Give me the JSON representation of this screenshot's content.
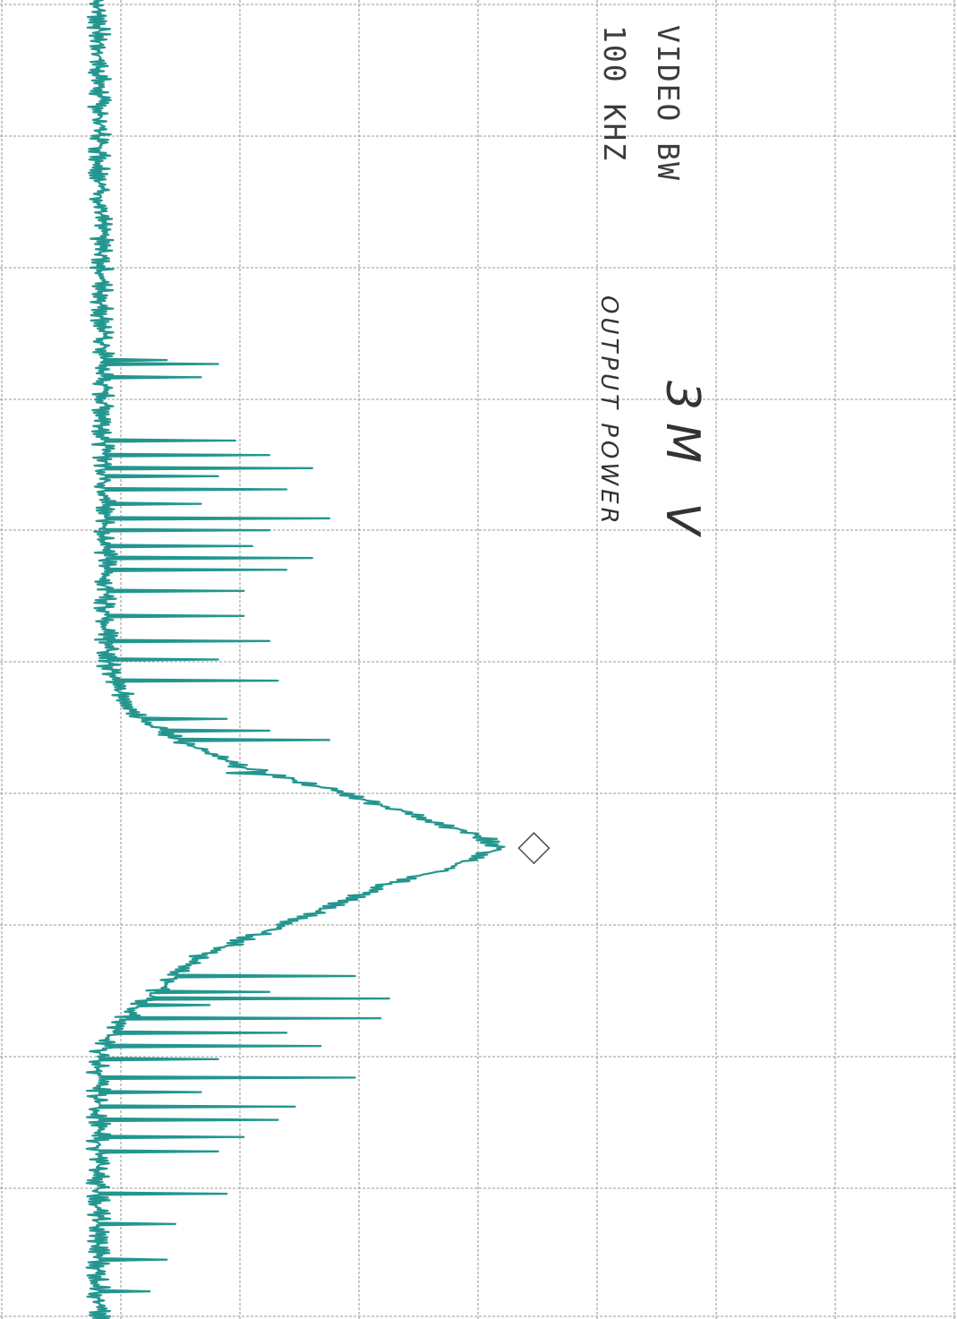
{
  "chart_data": {
    "type": "line",
    "annotations": {
      "video_bw_label": "VIDEO BW",
      "video_bw_value": "100 KHZ",
      "handwritten_title": "3M V",
      "handwritten_subtitle": "OUTPUT POWER"
    },
    "grid": {
      "on": true,
      "x_divisions": 10,
      "y_divisions": 8
    },
    "x_range": [
      0,
      1000
    ],
    "y_range": [
      0,
      100
    ],
    "trace_color": "#23968f",
    "marker": {
      "shape": "diamond",
      "x": 643,
      "y": 48
    },
    "noise_floor": 8,
    "spikes": [
      {
        "x": 273,
        "y": 8
      },
      {
        "x": 276,
        "y": 14
      },
      {
        "x": 286,
        "y": 12
      },
      {
        "x": 334,
        "y": 16
      },
      {
        "x": 345,
        "y": 20
      },
      {
        "x": 355,
        "y": 25
      },
      {
        "x": 361,
        "y": 14
      },
      {
        "x": 371,
        "y": 22
      },
      {
        "x": 382,
        "y": 12
      },
      {
        "x": 393,
        "y": 27
      },
      {
        "x": 402,
        "y": 20
      },
      {
        "x": 414,
        "y": 18
      },
      {
        "x": 423,
        "y": 25
      },
      {
        "x": 432,
        "y": 22
      },
      {
        "x": 448,
        "y": 17
      },
      {
        "x": 467,
        "y": 17
      },
      {
        "x": 486,
        "y": 20
      },
      {
        "x": 500,
        "y": 14
      },
      {
        "x": 516,
        "y": 21
      },
      {
        "x": 545,
        "y": 15
      },
      {
        "x": 554,
        "y": 20
      },
      {
        "x": 561,
        "y": 27
      },
      {
        "x": 586,
        "y": 15
      },
      {
        "x": 740,
        "y": 30
      },
      {
        "x": 752,
        "y": 20
      },
      {
        "x": 757,
        "y": 34
      },
      {
        "x": 762,
        "y": 13
      },
      {
        "x": 772,
        "y": 33
      },
      {
        "x": 783,
        "y": 22
      },
      {
        "x": 793,
        "y": 26
      },
      {
        "x": 803,
        "y": 14
      },
      {
        "x": 817,
        "y": 30
      },
      {
        "x": 828,
        "y": 12
      },
      {
        "x": 839,
        "y": 23
      },
      {
        "x": 849,
        "y": 21
      },
      {
        "x": 862,
        "y": 17
      },
      {
        "x": 873,
        "y": 14
      },
      {
        "x": 905,
        "y": 15
      },
      {
        "x": 928,
        "y": 9
      },
      {
        "x": 955,
        "y": 8
      },
      {
        "x": 979,
        "y": 6
      }
    ],
    "envelope": [
      {
        "x": 0,
        "y": 0
      },
      {
        "x": 500,
        "y": 1
      },
      {
        "x": 520,
        "y": 2
      },
      {
        "x": 545,
        "y": 5
      },
      {
        "x": 560,
        "y": 9
      },
      {
        "x": 580,
        "y": 16
      },
      {
        "x": 600,
        "y": 28
      },
      {
        "x": 620,
        "y": 38
      },
      {
        "x": 635,
        "y": 45
      },
      {
        "x": 643,
        "y": 47
      },
      {
        "x": 650,
        "y": 44
      },
      {
        "x": 660,
        "y": 40
      },
      {
        "x": 670,
        "y": 34
      },
      {
        "x": 690,
        "y": 26
      },
      {
        "x": 710,
        "y": 18
      },
      {
        "x": 725,
        "y": 12
      },
      {
        "x": 740,
        "y": 9
      },
      {
        "x": 760,
        "y": 5
      },
      {
        "x": 780,
        "y": 2
      },
      {
        "x": 800,
        "y": 0
      },
      {
        "x": 1000,
        "y": 0
      }
    ]
  }
}
